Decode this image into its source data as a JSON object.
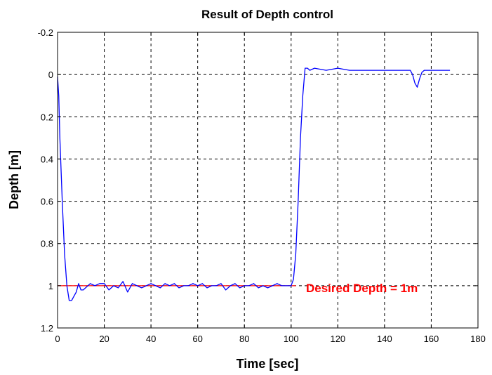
{
  "chart_data": {
    "type": "line",
    "title": "Result of Depth control",
    "xlabel": "Time [sec]",
    "ylabel": "Depth [m]",
    "xlim": [
      0,
      180
    ],
    "ylim": [
      1.2,
      -0.2
    ],
    "y_axis_inverted": true,
    "grid": true,
    "grid_style": "dashed",
    "xticks": [
      "0",
      "20",
      "40",
      "60",
      "80",
      "100",
      "120",
      "140",
      "160",
      "180"
    ],
    "yticks": [
      "-0.2",
      "0",
      "0.2",
      "0.4",
      "0.6",
      "0.8",
      "1",
      "1.2"
    ],
    "annotation": {
      "text": "Desired Depth = 1m",
      "color": "#ff0000"
    },
    "series": [
      {
        "color": "#ff0000",
        "x": [
          0,
          102
        ],
        "y": [
          1.0,
          1.0
        ]
      },
      {
        "color": "#0000ff",
        "x": [
          0,
          0.5,
          1,
          2,
          3,
          4,
          5,
          6,
          7,
          8,
          9,
          10,
          11,
          12,
          14,
          16,
          18,
          20,
          22,
          24,
          26,
          28,
          30,
          32,
          34,
          36,
          38,
          40,
          42,
          44,
          46,
          48,
          50,
          52,
          54,
          56,
          58,
          60,
          62,
          64,
          66,
          68,
          70,
          72,
          74,
          76,
          78,
          80,
          82,
          84,
          86,
          88,
          90,
          92,
          94,
          96,
          98,
          100,
          101,
          102,
          103,
          104,
          105,
          106,
          107,
          108,
          110,
          115,
          120,
          125,
          130,
          135,
          140,
          145,
          150,
          151,
          152,
          153,
          154,
          155,
          156,
          157,
          158,
          160,
          165,
          168
        ],
        "y": [
          0.01,
          0.1,
          0.3,
          0.6,
          0.85,
          1.0,
          1.07,
          1.07,
          1.05,
          1.03,
          0.99,
          1.02,
          1.02,
          1.01,
          0.99,
          1.0,
          0.99,
          0.99,
          1.02,
          1.0,
          1.01,
          0.98,
          1.03,
          0.99,
          1.0,
          1.01,
          1.0,
          0.99,
          1.0,
          1.01,
          0.99,
          1.0,
          0.99,
          1.01,
          1.0,
          1.0,
          0.99,
          1.0,
          0.99,
          1.01,
          1.0,
          1.0,
          0.99,
          1.02,
          1.0,
          0.99,
          1.01,
          1.0,
          1.0,
          0.99,
          1.01,
          1.0,
          1.01,
          1.0,
          0.99,
          1.0,
          1.0,
          1.0,
          0.97,
          0.85,
          0.6,
          0.3,
          0.1,
          -0.03,
          -0.03,
          -0.02,
          -0.03,
          -0.02,
          -0.03,
          -0.02,
          -0.02,
          -0.02,
          -0.02,
          -0.02,
          -0.02,
          -0.02,
          0.0,
          0.04,
          0.06,
          0.02,
          -0.01,
          -0.02,
          -0.02,
          -0.02,
          -0.02,
          -0.02
        ]
      }
    ]
  }
}
